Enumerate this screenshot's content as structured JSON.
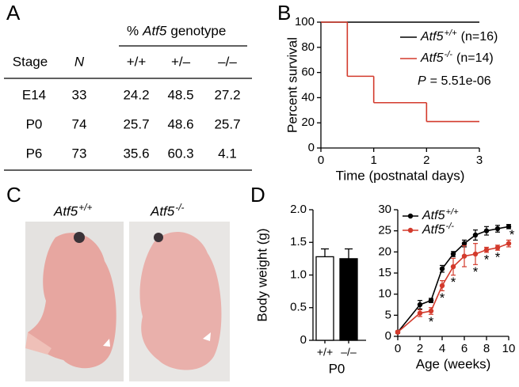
{
  "panel_labels": [
    "A",
    "B",
    "C",
    "D"
  ],
  "table": {
    "group_header": {
      "prefix": "%",
      "gene": "Atf5",
      "suffix": "genotype"
    },
    "columns": [
      "Stage",
      "N",
      "+/+",
      "+/–",
      "–/–"
    ],
    "rows": [
      [
        "E14",
        33,
        24.2,
        48.5,
        27.2
      ],
      [
        "P0",
        74,
        25.7,
        48.6,
        25.7
      ],
      [
        "P6",
        73,
        35.6,
        60.3,
        4.1
      ]
    ]
  },
  "photos": [
    {
      "gene": "Atf5",
      "genotype": "+/+"
    },
    {
      "gene": "Atf5",
      "genotype": "-/-"
    }
  ],
  "chart_data": [
    {
      "type": "step",
      "xlabel": "Time (postnatal days)",
      "ylabel": "Percent survival",
      "xlim": [
        0,
        3
      ],
      "xticks": [
        0,
        1,
        2,
        3
      ],
      "ylim": [
        0,
        100
      ],
      "yticks": [
        0,
        20,
        40,
        60,
        80,
        100
      ],
      "legend": "top-right",
      "series": [
        {
          "name": "Atf5",
          "superscript": "+/+",
          "count": "(n=16)",
          "color": "#000000",
          "x": [
            0
          ],
          "values": [
            100
          ]
        },
        {
          "name": "Atf5",
          "superscript": "-/-",
          "count": "(n=14)",
          "color": "#d33a2c",
          "x": [
            0,
            0.5,
            1,
            2
          ],
          "values": [
            100,
            57,
            36,
            21
          ]
        }
      ],
      "annotation": {
        "symbol": "P",
        "text": "= 5.51e-06"
      }
    },
    {
      "type": "bar",
      "ylabel": "Body weight (g)",
      "xlabel": "P0",
      "categories": [
        "+/+",
        "–/–"
      ],
      "values": [
        1.28,
        1.25
      ],
      "errors": [
        0.12,
        0.15
      ],
      "colors": [
        "#ffffff",
        "#000000"
      ],
      "ylim": [
        0,
        2
      ],
      "yticks": [
        0,
        0.5,
        {
          "value": 1,
          "label": "1.0"
        },
        1.5,
        {
          "value": 2,
          "label": "2.0"
        }
      ]
    },
    {
      "type": "line",
      "xlabel": "Age (weeks)",
      "x": [
        0,
        2,
        3,
        4,
        5,
        6,
        7,
        8,
        9,
        10
      ],
      "xlim": [
        0,
        10
      ],
      "xticks": [
        0,
        2,
        4,
        6,
        8,
        10
      ],
      "ylim": [
        0,
        30
      ],
      "yticks": [
        0,
        5,
        10,
        15,
        20,
        25,
        30
      ],
      "legend": "top-left",
      "series": [
        {
          "name": "Atf5",
          "superscript": "+/+",
          "color": "#000000",
          "values": [
            1,
            7.5,
            8.5,
            16,
            19.5,
            22,
            24,
            25,
            25.5,
            26
          ],
          "errors": [
            0.3,
            1,
            0.5,
            0.8,
            0.6,
            0.8,
            1.2,
            1,
            0.8,
            0.5
          ]
        },
        {
          "name": "Atf5",
          "superscript": "-/-",
          "color": "#d33a2c",
          "values": [
            1,
            5.5,
            6,
            12,
            16.5,
            19,
            19.5,
            20.5,
            21,
            22
          ],
          "errors": [
            0.3,
            0.8,
            0.8,
            1.2,
            2,
            2.5,
            2.5,
            0.6,
            0.6,
            0.8
          ]
        }
      ],
      "significance": {
        "label": "*",
        "x": [
          3,
          4,
          5,
          7,
          8,
          9,
          10
        ]
      }
    }
  ]
}
